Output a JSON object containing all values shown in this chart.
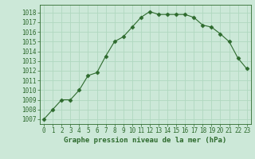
{
  "x": [
    0,
    1,
    2,
    3,
    4,
    5,
    6,
    7,
    8,
    9,
    10,
    11,
    12,
    13,
    14,
    15,
    16,
    17,
    18,
    19,
    20,
    21,
    22,
    23
  ],
  "y": [
    1007,
    1008,
    1009,
    1009,
    1010,
    1011.5,
    1011.8,
    1013.5,
    1015,
    1015.5,
    1016.5,
    1017.5,
    1018.1,
    1017.8,
    1017.8,
    1017.8,
    1017.8,
    1017.5,
    1016.7,
    1016.5,
    1015.8,
    1015,
    1013.3,
    1012.2
  ],
  "line_color": "#2d6a2d",
  "marker": "D",
  "marker_size": 2.5,
  "bg_color": "#cce8d8",
  "grid_color": "#b0d8c0",
  "xlabel": "Graphe pression niveau de la mer (hPa)",
  "ylim_min": 1006.5,
  "ylim_max": 1018.8,
  "xlim_min": -0.5,
  "xlim_max": 23.5,
  "yticks": [
    1007,
    1008,
    1009,
    1010,
    1011,
    1012,
    1013,
    1014,
    1015,
    1016,
    1017,
    1018
  ],
  "xticks": [
    0,
    1,
    2,
    3,
    4,
    5,
    6,
    7,
    8,
    9,
    10,
    11,
    12,
    13,
    14,
    15,
    16,
    17,
    18,
    19,
    20,
    21,
    22,
    23
  ],
  "tick_fontsize": 5.5,
  "label_fontsize": 6.5,
  "spine_color": "#2d6a2d"
}
